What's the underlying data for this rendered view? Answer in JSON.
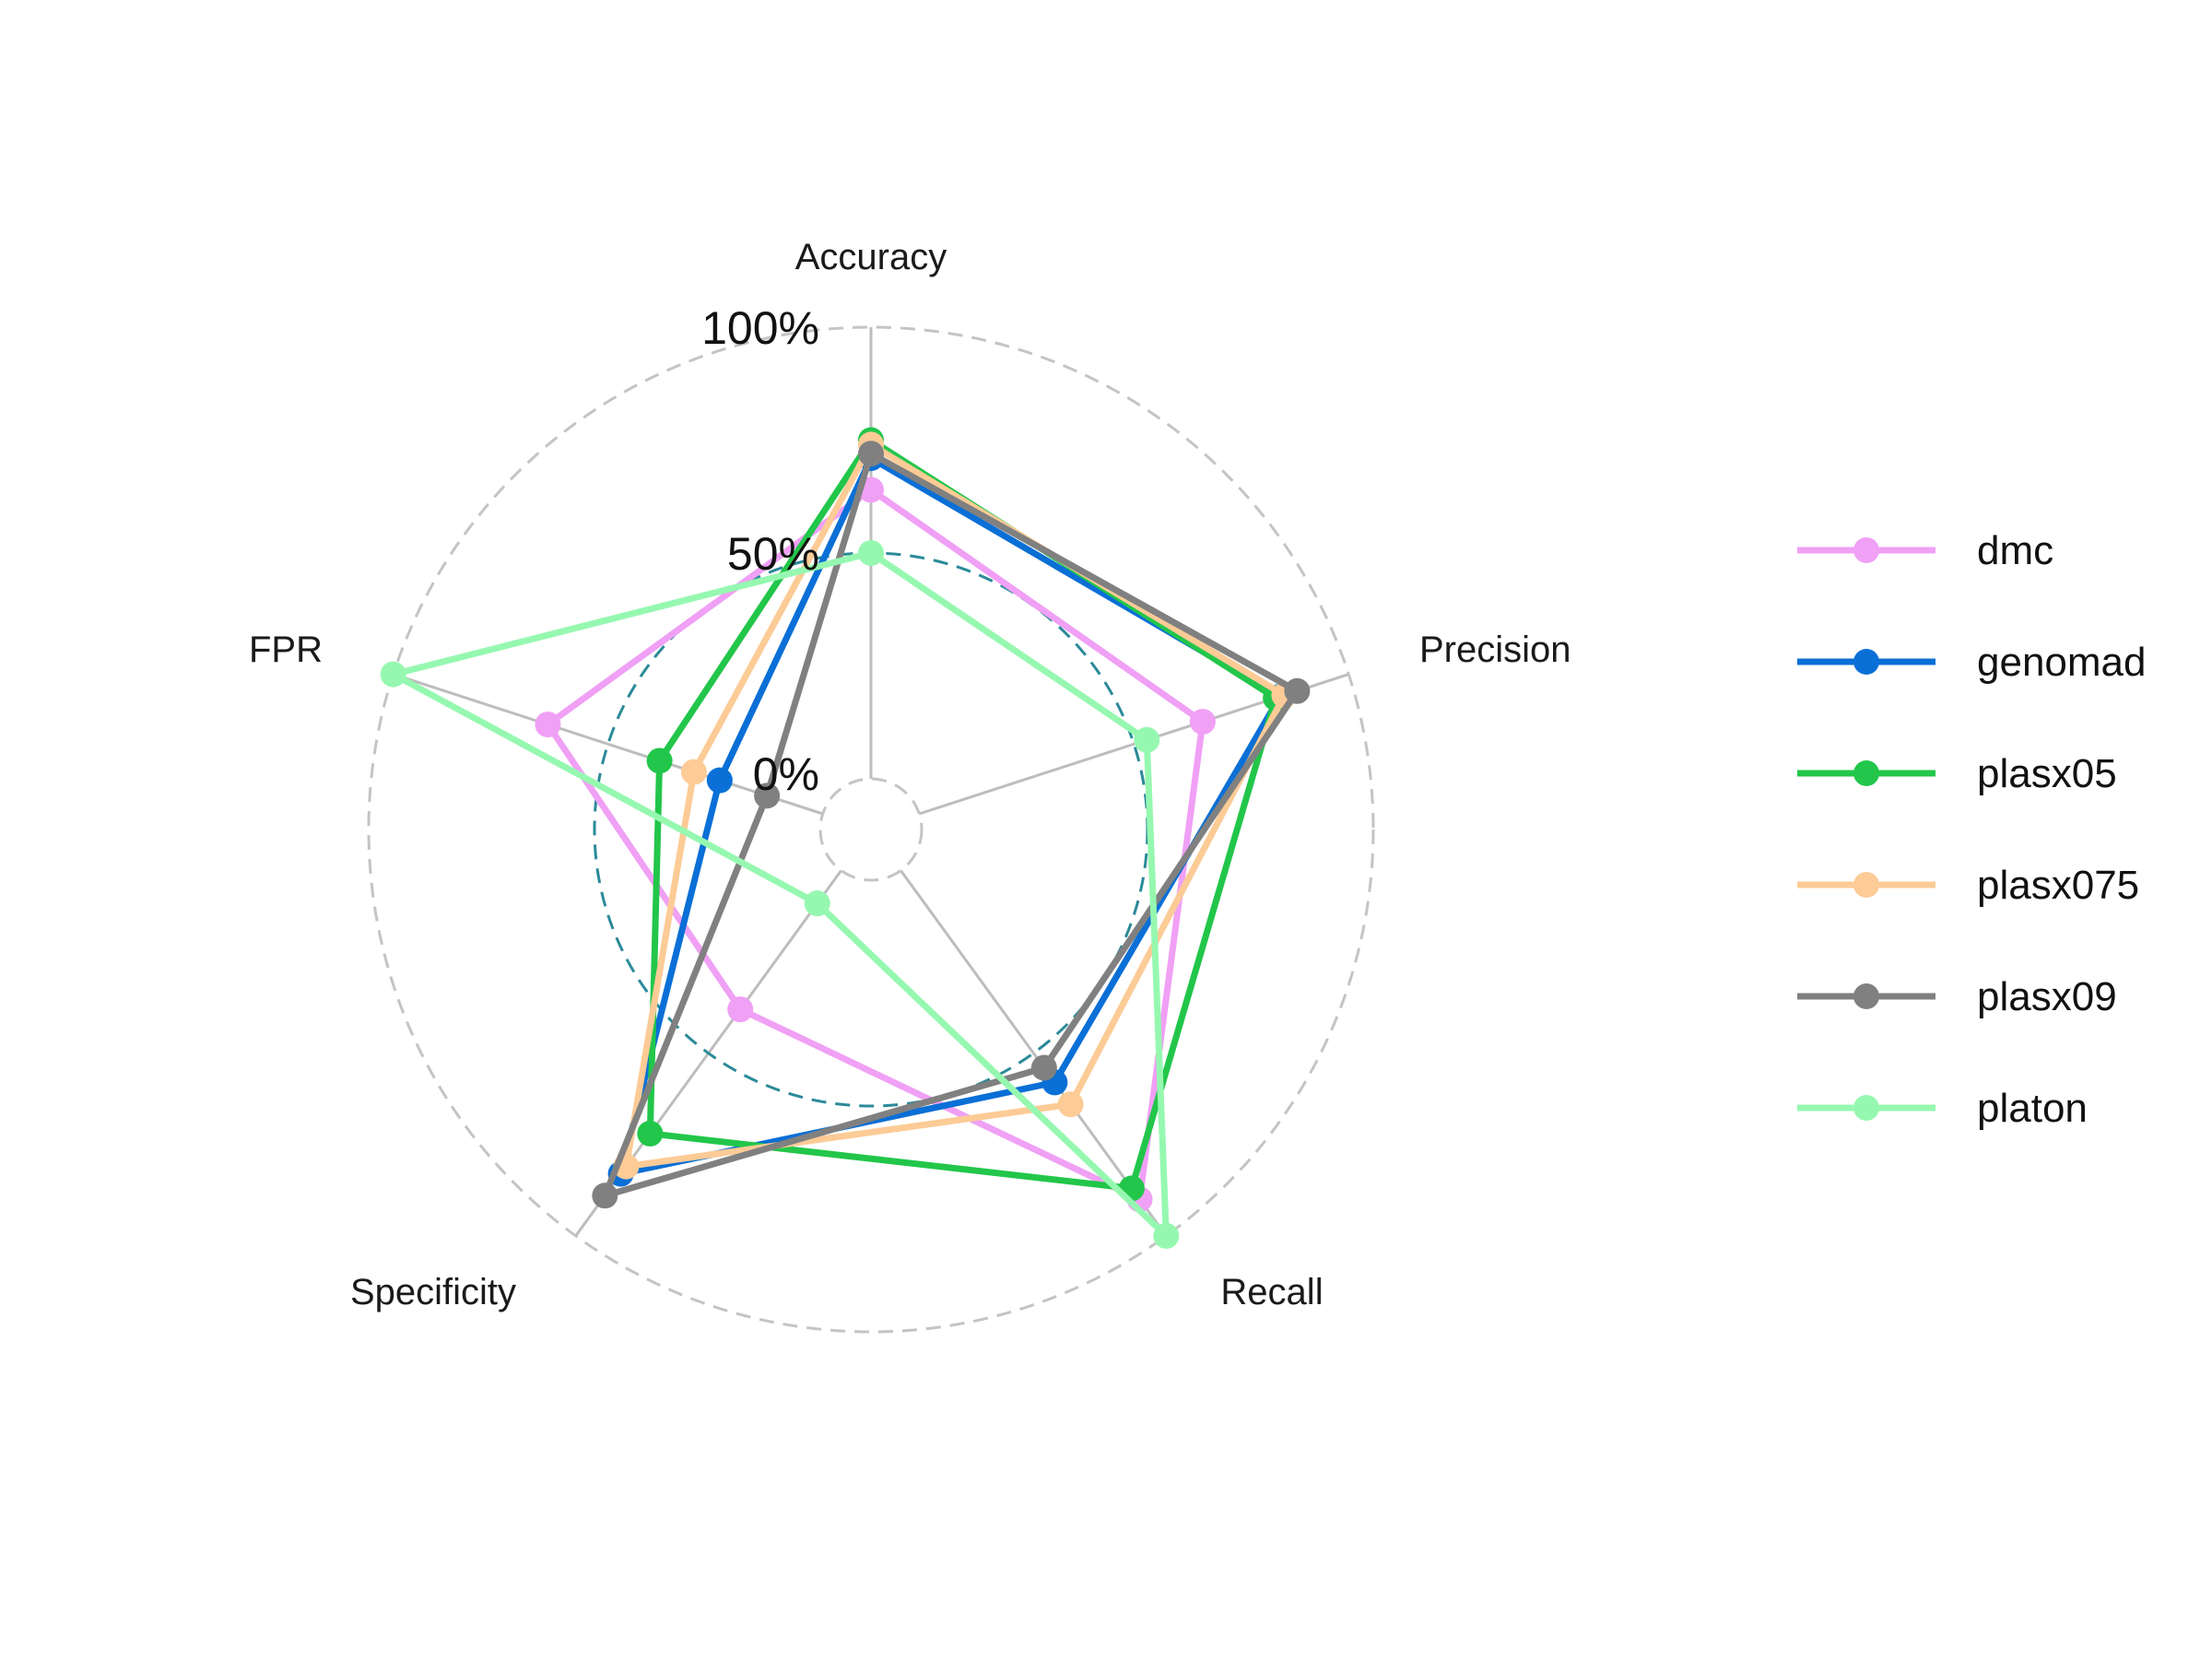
{
  "chart_data": {
    "type": "radar",
    "axes": [
      "Accuracy",
      "Precision",
      "Recall",
      "Specificity",
      "FPR"
    ],
    "grid_labels": [
      "0%",
      "50%",
      "100%"
    ],
    "range": [
      0,
      1
    ],
    "series": [
      {
        "name": "dmc",
        "color": "#f0a0f5",
        "values": [
          0.64,
          0.66,
          0.9,
          0.38,
          0.64
        ]
      },
      {
        "name": "genomad",
        "color": "#0a6fd6",
        "values": [
          0.71,
          0.84,
          0.58,
          0.83,
          0.24
        ]
      },
      {
        "name": "plasx05",
        "color": "#22c64a",
        "values": [
          0.75,
          0.83,
          0.87,
          0.72,
          0.38
        ]
      },
      {
        "name": "plasx075",
        "color": "#fccb96",
        "values": [
          0.74,
          0.85,
          0.64,
          0.81,
          0.3
        ]
      },
      {
        "name": "plasx09",
        "color": "#808080",
        "values": [
          0.72,
          0.88,
          0.54,
          0.89,
          0.13
        ]
      },
      {
        "name": "platon",
        "color": "#96f8b0",
        "values": [
          0.5,
          0.53,
          1.0,
          0.09,
          1.0
        ]
      }
    ],
    "reference_circle": 0.5,
    "legend_position": "right"
  }
}
